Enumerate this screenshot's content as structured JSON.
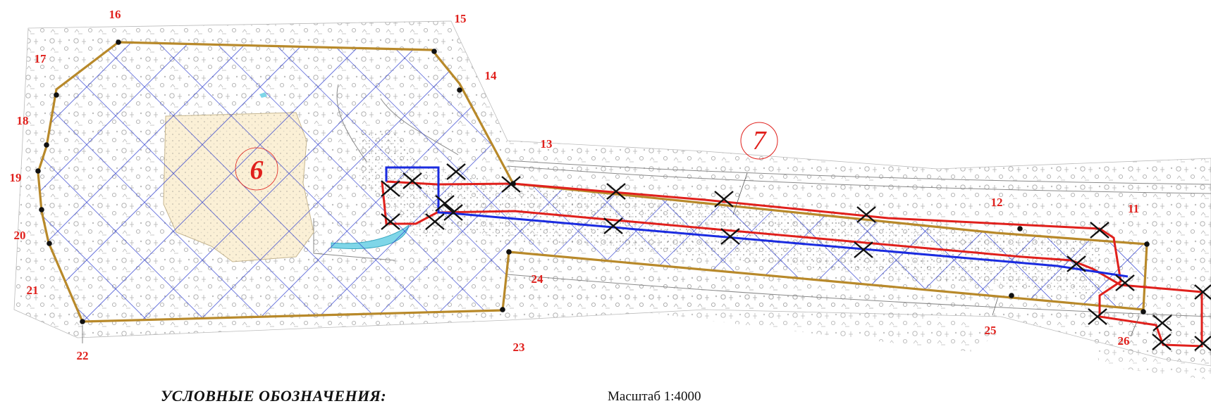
{
  "map": {
    "zones": [
      {
        "id": "zone-6",
        "label": "6"
      },
      {
        "id": "zone-7",
        "label": "7"
      }
    ],
    "points": [
      "11",
      "12",
      "13",
      "14",
      "15",
      "16",
      "17",
      "18",
      "19",
      "20",
      "21",
      "22",
      "23",
      "24",
      "25",
      "26"
    ],
    "colors": {
      "boundary": "#b8892a",
      "red_line": "#e0201c",
      "blue_line": "#1a2be0",
      "hatch": "#2233cc",
      "labels": "#e0201c",
      "sand_fill": "#fbf0d6",
      "water": "#7fd6e8"
    }
  },
  "legend": {
    "title": "УСЛОВНЫЕ ОБОЗНАЧЕНИЯ:"
  },
  "scale": {
    "text": "Масштаб 1:4000"
  }
}
